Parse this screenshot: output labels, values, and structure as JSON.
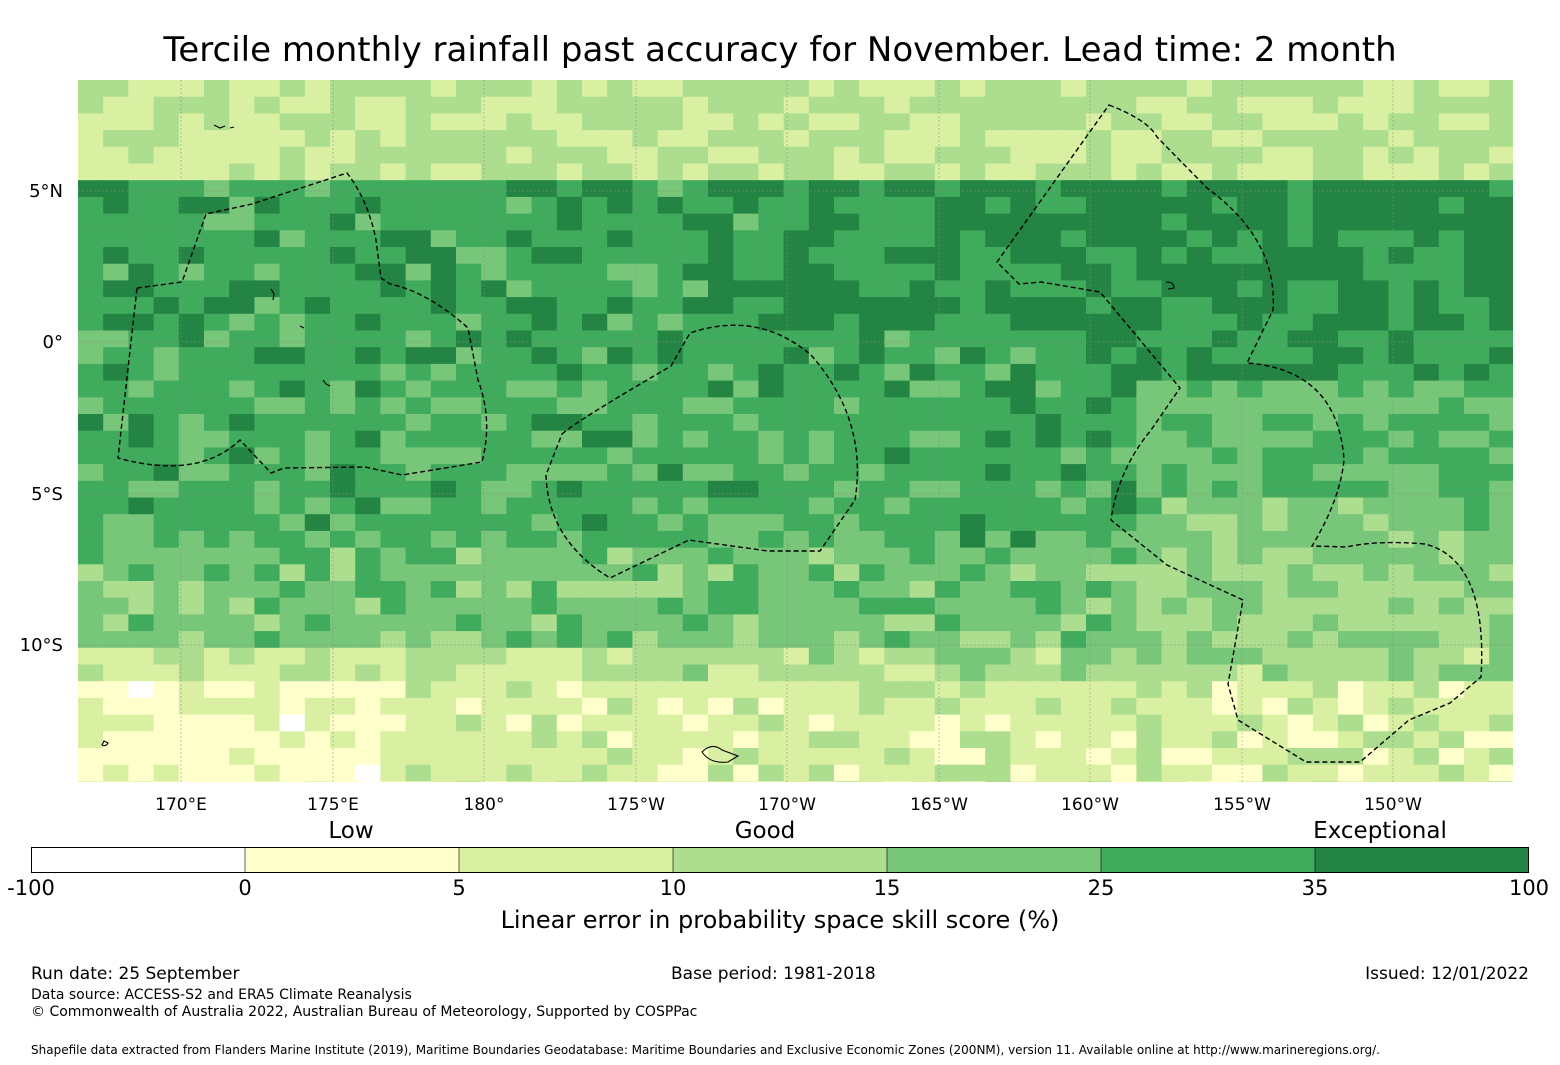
{
  "title": "Tercile monthly rainfall past accuracy for November. Lead time: 2 month",
  "colors": {
    "bins": [
      "#ffffff",
      "#ffffcc",
      "#d9f0a3",
      "#addd8e",
      "#78c679",
      "#41ab5d",
      "#238443"
    ],
    "eez_line": "#000000",
    "grid_line": "#888888"
  },
  "map": {
    "lat_labels": [
      "5°N",
      "0°",
      "5°S",
      "10°S"
    ],
    "lon_labels": [
      "170°E",
      "175°E",
      "180°",
      "175°W",
      "170°W",
      "165°W",
      "160°W",
      "155°W",
      "150°W"
    ]
  },
  "legend": {
    "category_labels": [
      "Low",
      "Good",
      "Exceptional"
    ],
    "ticks": [
      "-100",
      "0",
      "5",
      "10",
      "15",
      "25",
      "35",
      "100"
    ],
    "label": "Linear error in probability space skill score (%)"
  },
  "footer": {
    "run_date": "Run date: 25 September",
    "base_period": "Base period: 1981-2018",
    "issued": "Issued: 12/01/2022",
    "data_source": "Data source: ACCESS-S2 and ERA5 Climate Reanalysis",
    "copyright": "© Commonwealth of Australia 2022, Australian Bureau of Meteorology, Supported by COSPPac",
    "shapefile": "Shapefile data extracted from Flanders Marine Institute (2019), Maritime Boundaries Geodatabase: Maritime Boundaries and Exclusive Economic Zones (200NM), version 11. Available online at http://www.marineregions.org/."
  }
}
